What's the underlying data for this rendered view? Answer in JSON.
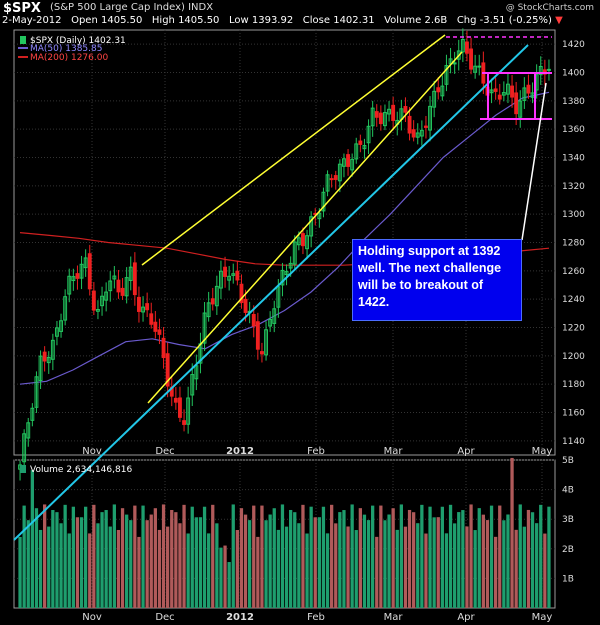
{
  "header": {
    "symbol": "$SPX",
    "name": "(S&P 500 Large Cap Index) INDX",
    "date": "2-May-2012",
    "open_label": "Open",
    "open": "1405.50",
    "high_label": "High",
    "high": "1405.50",
    "low_label": "Low",
    "low": "1393.92",
    "close_label": "Close",
    "close": "1402.31",
    "volume_label": "Volume",
    "volume": "2.6B",
    "chg_label": "Chg",
    "chg": "-3.51 (-0.25%)",
    "chg_arrow": "▼",
    "copyright": "@ StockCharts.com"
  },
  "legend": {
    "price": "$SPX (Daily) 1402.31",
    "ma50": "MA(50) 1385.85",
    "ma200": "MA(200) 1276.00",
    "volume": "Volume 2,634,146,816"
  },
  "annotation": "Holding support at 1392 well. The next challenge will be to breakout of 1422.",
  "colors": {
    "up": "#22c55e",
    "down": "#ef2020",
    "ma50": "#6a5acd",
    "ma200": "#d02020",
    "trend_yellow": "#ffff33",
    "trend_cyan": "#22c7e8",
    "support_magenta": "#ff33ff",
    "vol_up": "#1e9e6e",
    "vol_down": "#b05a5a"
  },
  "chart_data": {
    "type": "candlestick",
    "title": "$SPX (S&P 500 Large Cap Index)",
    "x": [
      "Oct-2011",
      "Nov",
      "Dec",
      "2012",
      "Feb",
      "Mar",
      "Apr",
      "May"
    ],
    "x_tick_labels": [
      "Nov",
      "Dec",
      "2012",
      "Feb",
      "Mar",
      "Apr",
      "May"
    ],
    "ylim": [
      1130,
      1430
    ],
    "y_tick_labels": [
      "1140",
      "1160",
      "1180",
      "1200",
      "1220",
      "1240",
      "1260",
      "1280",
      "1300",
      "1320",
      "1340",
      "1360",
      "1380",
      "1400",
      "1420"
    ],
    "close_path_approx": [
      1123,
      1160,
      1200,
      1210,
      1240,
      1255,
      1265,
      1230,
      1255,
      1240,
      1260,
      1235,
      1225,
      1195,
      1165,
      1160,
      1195,
      1230,
      1255,
      1265,
      1240,
      1220,
      1205,
      1240,
      1255,
      1275,
      1290,
      1305,
      1320,
      1330,
      1345,
      1350,
      1365,
      1368,
      1375,
      1370,
      1345,
      1370,
      1395,
      1405,
      1415,
      1408,
      1400,
      1380,
      1385,
      1378,
      1390,
      1395,
      1402
    ],
    "ma50_approx": [
      1180,
      1182,
      1190,
      1200,
      1210,
      1212,
      1208,
      1205,
      1215,
      1222,
      1232,
      1245,
      1262,
      1282,
      1300,
      1320,
      1340,
      1355,
      1370,
      1382,
      1386
    ],
    "ma200_approx": [
      1287,
      1285,
      1283,
      1280,
      1278,
      1276,
      1272,
      1268,
      1265,
      1264,
      1264,
      1264,
      1265,
      1266,
      1268,
      1270,
      1272,
      1274,
      1276
    ],
    "support_levels": [
      1392,
      1360
    ],
    "resistance_level": 1422,
    "volume": {
      "ylim": [
        "0",
        "5B"
      ],
      "y_tick_labels": [
        "1B",
        "2B",
        "3B",
        "4B",
        "5B"
      ],
      "last": "2,634,146,816"
    }
  }
}
